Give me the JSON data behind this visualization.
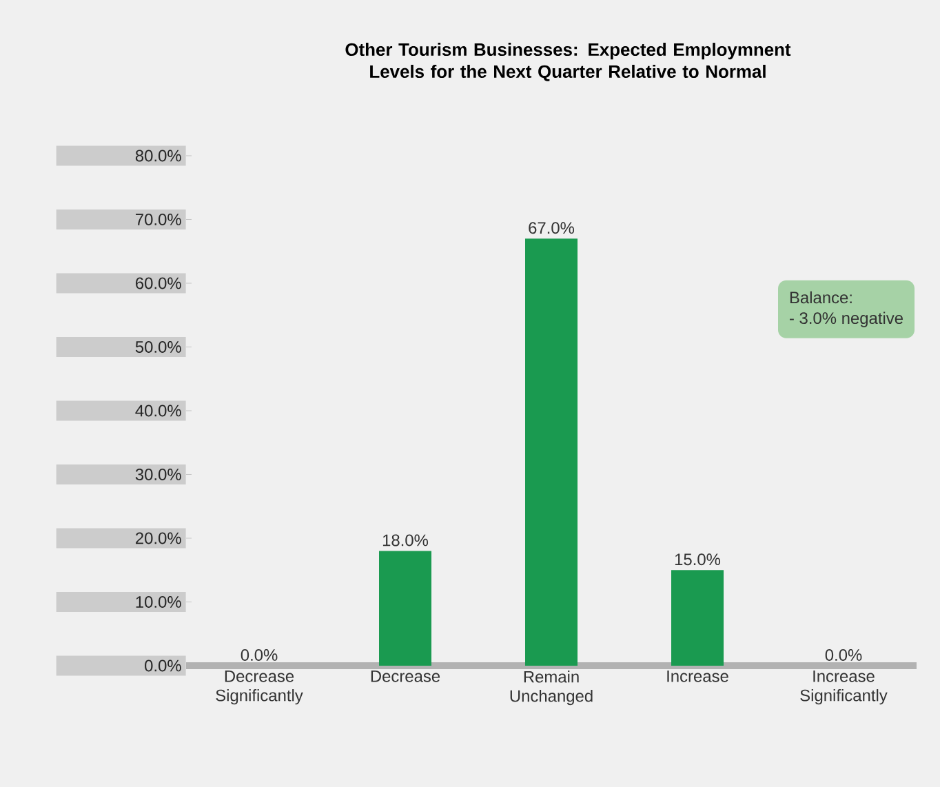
{
  "chart_data": {
    "type": "bar",
    "title": "Other Tourism Businesses: Expected Employmnent Levels for the Next Quarter Relative to Normal",
    "categories": [
      "Decrease Significantly",
      "Decrease",
      "Remain Unchanged",
      "Increase",
      "Increase Significantly"
    ],
    "values": [
      0,
      18,
      67,
      15,
      0
    ],
    "value_labels": [
      "0.0%",
      "18.0%",
      "67.0%",
      "15.0%",
      "0.0%"
    ],
    "color": "#1a9a50",
    "ylim": [
      0,
      80
    ],
    "yticks": [
      {
        "value": 0,
        "label": "0.0%"
      },
      {
        "value": 10,
        "label": "10.0%"
      },
      {
        "value": 20,
        "label": "20.0%"
      },
      {
        "value": 30,
        "label": "30.0%"
      },
      {
        "value": 40,
        "label": "40.0%"
      },
      {
        "value": 50,
        "label": "50.0%"
      },
      {
        "value": 60,
        "label": "60.0%"
      },
      {
        "value": 70,
        "label": "70.0%"
      },
      {
        "value": 80,
        "label": "80.0%"
      }
    ],
    "annotations": [
      "Balance:",
      "- 3.0% negative"
    ],
    "grid": false
  }
}
